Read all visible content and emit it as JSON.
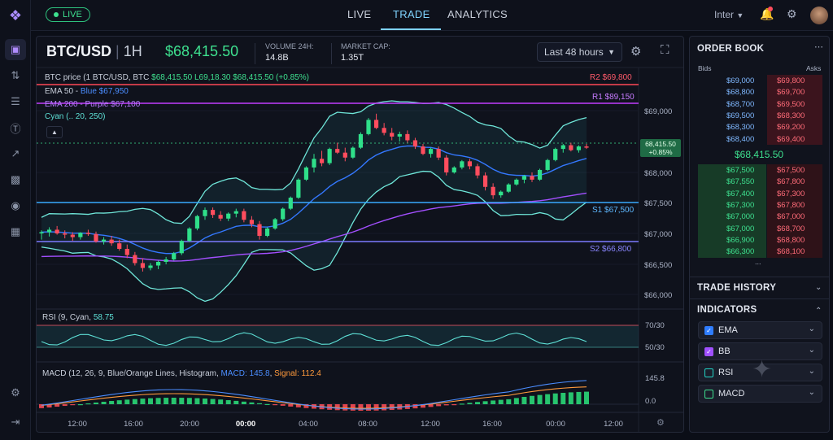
{
  "nav": {
    "live_label": "LIVE",
    "tabs": [
      "LIVE",
      "TRADE",
      "ANALYTICS"
    ],
    "active_tab": "TRADE",
    "font_selector": "Inter"
  },
  "rail_icons": [
    "logo-icon",
    "wallet-icon",
    "sliders-icon",
    "list-icon",
    "dollar-icon",
    "trend-icon",
    "bar-chart-icon",
    "layers-icon",
    "report-icon",
    "settings-icon",
    "logout-icon"
  ],
  "chart_header": {
    "pair": "BTC/USD",
    "timeframe": "1H",
    "price": "$68,415.50",
    "volume_label": "VOLUME 24H:",
    "volume_value": "14.8B",
    "mcap_label": "MARKET CAP:",
    "mcap_value": "1.35T",
    "range_button": "Last 48 hours"
  },
  "legend": {
    "line1_prefix": "BTC price (1 BTC/USD,  BTC",
    "line1_values": "$68,415.50  L69,18.30  $68,415.50  (+0.85%)",
    "ema50": "EMA 50 - ",
    "ema50_value": "Blue $67,950",
    "ema200": "EMA 200 - Purple $67,100",
    "cyan": "Cyan (.. 20, 250)"
  },
  "levels": {
    "r2": "R2 $69,800",
    "r1": "R1 $89,150",
    "s1": "S1 $67,500",
    "s2": "S2 $66,800"
  },
  "price_tag": {
    "value": "68,415.50",
    "change": "+0.85%"
  },
  "rsi": {
    "label": "RSI (9, Cyan, ",
    "value": "58.75",
    "axis": [
      "70/30",
      "50/30"
    ]
  },
  "macd": {
    "label": "MACD (12, 26, 9, Blue/Orange Lines, Histogram, ",
    "macd_label": "MACD: 145.8",
    "signal_label": "Signal: 112.4",
    "axis": [
      "145.8",
      "0.0"
    ]
  },
  "chart_data": {
    "type": "candlestick",
    "x_ticks": [
      "12:00",
      "16:00",
      "20:00",
      "00:00",
      "04:00",
      "08:00",
      "12:00",
      "16:00",
      "00:00",
      "12:00"
    ],
    "y_ticks": [
      "$69,000",
      "$68,000",
      "$67,500",
      "$67,000",
      "$66,500",
      "$66,000"
    ],
    "ylim": [
      65900,
      70100
    ],
    "candles": [
      [
        67000,
        67050,
        66900,
        67020
      ],
      [
        67020,
        67100,
        66950,
        67060
      ],
      [
        67060,
        67120,
        66980,
        67000
      ],
      [
        67000,
        67050,
        66920,
        66980
      ],
      [
        66980,
        67020,
        66880,
        66940
      ],
      [
        66940,
        67020,
        66900,
        67010
      ],
      [
        67010,
        67060,
        66960,
        66990
      ],
      [
        66990,
        67030,
        66850,
        66870
      ],
      [
        66870,
        66940,
        66820,
        66900
      ],
      [
        66900,
        66960,
        66800,
        66840
      ],
      [
        66840,
        66900,
        66720,
        66750
      ],
      [
        66750,
        66820,
        66600,
        66650
      ],
      [
        66650,
        66700,
        66480,
        66520
      ],
      [
        66520,
        66600,
        66380,
        66440
      ],
      [
        66440,
        66520,
        66400,
        66480
      ],
      [
        66480,
        66560,
        66420,
        66540
      ],
      [
        66540,
        66620,
        66500,
        66580
      ],
      [
        66580,
        66700,
        66560,
        66680
      ],
      [
        66680,
        66900,
        66650,
        66880
      ],
      [
        66880,
        67100,
        66860,
        67080
      ],
      [
        67080,
        67300,
        67050,
        67280
      ],
      [
        67280,
        67420,
        67220,
        67380
      ],
      [
        67380,
        67420,
        67250,
        67300
      ],
      [
        67300,
        67360,
        67200,
        67240
      ],
      [
        67240,
        67340,
        67200,
        67320
      ],
      [
        67320,
        67400,
        67260,
        67360
      ],
      [
        67360,
        67400,
        67180,
        67220
      ],
      [
        67220,
        67280,
        67100,
        67150
      ],
      [
        67150,
        67200,
        66900,
        66960
      ],
      [
        66960,
        67100,
        66940,
        67080
      ],
      [
        67080,
        67250,
        67060,
        67230
      ],
      [
        67230,
        67420,
        67200,
        67400
      ],
      [
        67400,
        67600,
        67380,
        67580
      ],
      [
        67580,
        67900,
        67560,
        67880
      ],
      [
        67880,
        68100,
        67860,
        68080
      ],
      [
        68080,
        68300,
        68000,
        68220
      ],
      [
        68220,
        68350,
        68100,
        68150
      ],
      [
        68150,
        68400,
        68120,
        68380
      ],
      [
        68380,
        68480,
        68300,
        68320
      ],
      [
        68320,
        68400,
        68180,
        68240
      ],
      [
        68240,
        68420,
        68220,
        68400
      ],
      [
        68400,
        68650,
        68380,
        68620
      ],
      [
        68620,
        68880,
        68600,
        68850
      ],
      [
        68850,
        68950,
        68700,
        68720
      ],
      [
        68720,
        68800,
        68600,
        68640
      ],
      [
        68640,
        68720,
        68520,
        68580
      ],
      [
        68580,
        68660,
        68500,
        68620
      ],
      [
        68620,
        68680,
        68480,
        68520
      ],
      [
        68520,
        68560,
        68380,
        68420
      ],
      [
        68420,
        68460,
        68280,
        68300
      ],
      [
        68300,
        68400,
        68240,
        68380
      ],
      [
        68380,
        68420,
        68200,
        68240
      ],
      [
        68240,
        68280,
        67950,
        68000
      ],
      [
        68000,
        68100,
        67980,
        68080
      ],
      [
        68080,
        68200,
        68050,
        68180
      ],
      [
        68180,
        68220,
        68050,
        68100
      ],
      [
        68100,
        68140,
        67900,
        67950
      ],
      [
        67950,
        68000,
        67700,
        67760
      ],
      [
        67760,
        67820,
        67560,
        67620
      ],
      [
        67620,
        67700,
        67580,
        67680
      ],
      [
        67680,
        67820,
        67660,
        67800
      ],
      [
        67800,
        67900,
        67780,
        67880
      ],
      [
        67880,
        67960,
        67820,
        67940
      ],
      [
        67940,
        68000,
        67840,
        67880
      ],
      [
        67880,
        68060,
        67860,
        68040
      ],
      [
        68040,
        68220,
        68020,
        68200
      ],
      [
        68200,
        68400,
        68180,
        68380
      ],
      [
        68380,
        68460,
        68320,
        68440
      ],
      [
        68440,
        68480,
        68340,
        68360
      ],
      [
        68360,
        68440,
        68320,
        68420
      ],
      [
        68420,
        68460,
        68380,
        68415
      ]
    ]
  },
  "order_book": {
    "title": "ORDER BOOK",
    "bids_label": "Bids",
    "asks_label": "Asks",
    "top": [
      [
        "$69,000",
        "$69,800"
      ],
      [
        "$68,800",
        "$69,700"
      ],
      [
        "$68,700",
        "$69,500"
      ],
      [
        "$69,500",
        "$68,300"
      ],
      [
        "$68,300",
        "$69,200"
      ],
      [
        "$68,400",
        "$69,400"
      ]
    ],
    "mid_price": "$68,415.50",
    "bottom": [
      [
        "$67,500",
        "$67,500"
      ],
      [
        "$67,550",
        "$67,800"
      ],
      [
        "$67,400",
        "$67,300"
      ],
      [
        "$67,300",
        "$67,800"
      ],
      [
        "$67,000",
        "$67,000"
      ],
      [
        "$67,000",
        "$68,700"
      ],
      [
        "$66,900",
        "$68,800"
      ],
      [
        "$66,300",
        "$68,100"
      ]
    ],
    "more": "..."
  },
  "trade_history": {
    "title": "TRADE HISTORY"
  },
  "indicators": {
    "title": "INDICATORS",
    "items": [
      {
        "label": "EMA",
        "color": "#2f7dff",
        "checked": true
      },
      {
        "label": "BB",
        "color": "#a050ff",
        "checked": true
      },
      {
        "label": "RSI",
        "color": "#22d3c5",
        "checked": false
      },
      {
        "label": "MACD",
        "color": "#3ee08f",
        "checked": false
      }
    ]
  }
}
